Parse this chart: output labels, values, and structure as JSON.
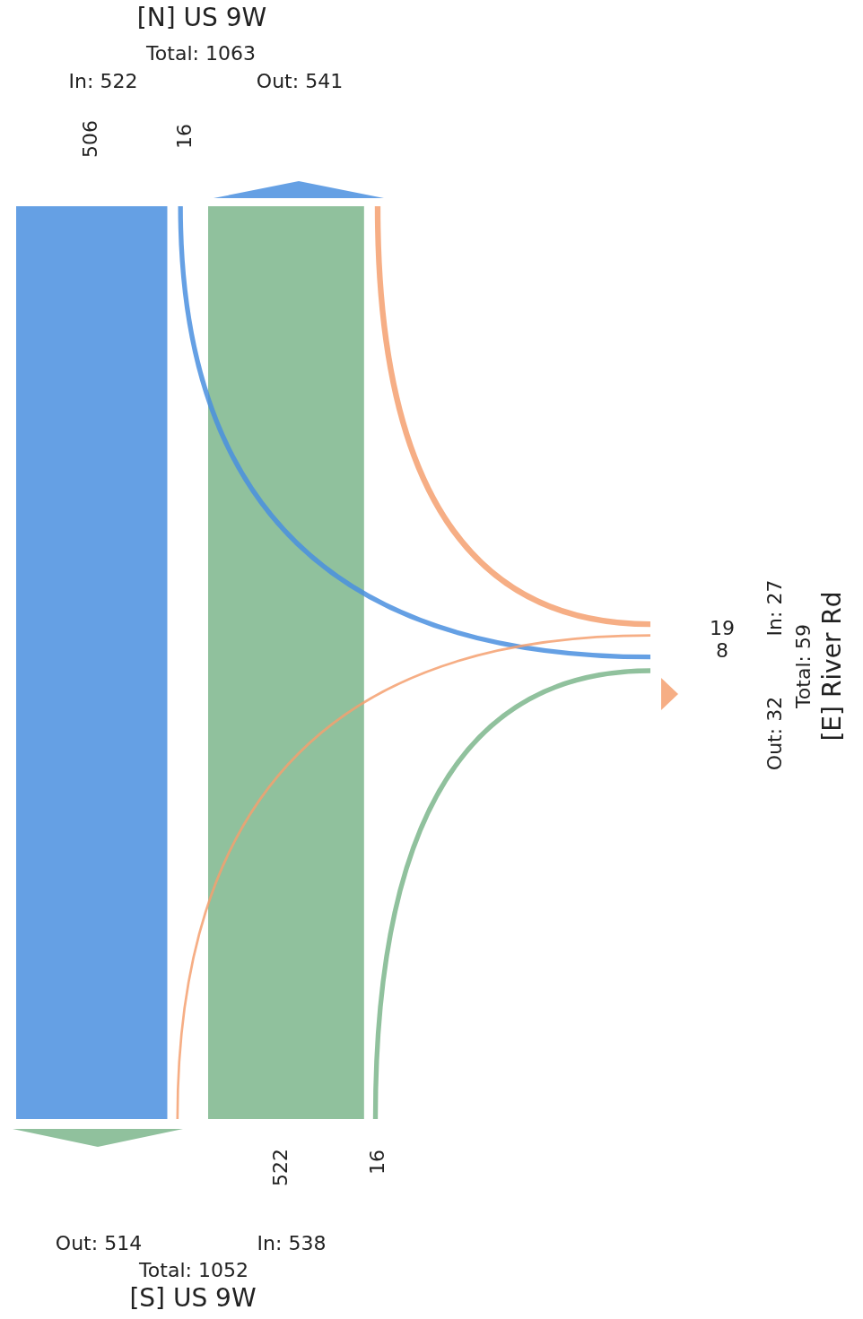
{
  "chart_data": {
    "type": "other",
    "categories": [
      "[N] US 9W",
      "[S] US 9W",
      "[E] River Rd"
    ],
    "series": [
      {
        "colors": [
          "#4a8fdf",
          "#7db68c",
          "#f5a070"
        ],
        "values": [
          506,
          522,
          19
        ]
      },
      {
        "colors": [
          "#4a8fdf",
          "#7db68c",
          "#f5a070"
        ],
        "values": [
          16,
          16,
          8
        ]
      }
    ],
    "data_labels": true,
    "annotations": [
      "Total: 1063",
      "In: 522",
      "Out: 541",
      "Out: 514",
      "In: 538",
      "Total: 1052",
      "In: 27",
      "Out: 32",
      "Total: 59"
    ]
  }
}
